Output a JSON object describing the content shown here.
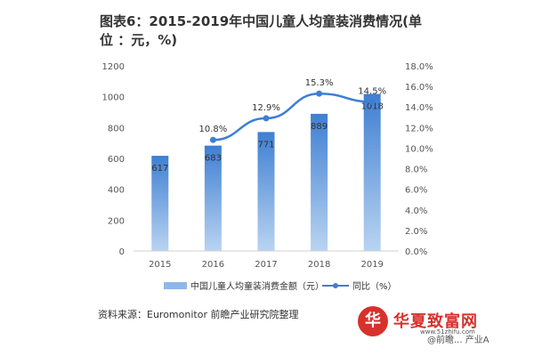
{
  "title": "图表6：2015-2019年中国儿童人均童装消费情况(单 位 ：元，%)",
  "source": "资料来源：Euromonitor 前瞻产业研究院整理",
  "watermark": "华夏致富网",
  "watermark_url": "www.51zhifu.com",
  "credit": "@前瞻... 产业A",
  "chart_data": {
    "type": "bar",
    "categories": [
      "2015",
      "2016",
      "2017",
      "2018",
      "2019"
    ],
    "series": [
      {
        "name": "中国儿童人均童装消费金额（元）",
        "type": "bar",
        "axis": "left",
        "values": [
          617,
          683,
          771,
          889,
          1018
        ]
      },
      {
        "name": "同比（%）",
        "type": "line",
        "axis": "right",
        "values": [
          null,
          10.8,
          12.9,
          15.3,
          14.5
        ],
        "labels": [
          "",
          "10.8%",
          "12.9%",
          "15.3%",
          "14.5%"
        ]
      }
    ],
    "y_left": {
      "min": 0,
      "max": 1200,
      "ticks": [
        "0",
        "200",
        "400",
        "600",
        "800",
        "1000",
        "1200"
      ]
    },
    "y_right": {
      "min": 0,
      "max": 18,
      "ticks": [
        "0.0%",
        "2.0%",
        "4.0%",
        "6.0%",
        "8.0%",
        "10.0%",
        "12.0%",
        "14.0%",
        "16.0%",
        "18.0%"
      ]
    },
    "legend": "bottom",
    "colors": {
      "bar_light": "#a9c8ec",
      "bar_dark": "#3f7fd3",
      "line": "#3c7fd6",
      "axis_text": "#555555"
    }
  }
}
